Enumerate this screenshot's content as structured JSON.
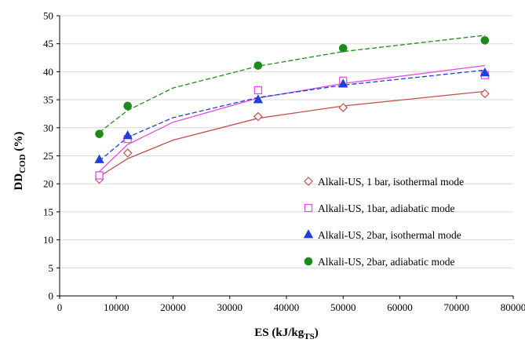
{
  "chart_data": {
    "type": "scatter",
    "xlabel": "ES (kJ/kg",
    "xlabel_sub": "TS",
    "xlabel_end": ")",
    "ylabel": "DD",
    "ylabel_sub": "COD",
    "ylabel_end": " (%)",
    "xlim": [
      0,
      80000
    ],
    "ylim": [
      0,
      50
    ],
    "xticks": [
      0,
      10000,
      20000,
      30000,
      40000,
      50000,
      60000,
      70000,
      80000
    ],
    "yticks": [
      0,
      5,
      10,
      15,
      20,
      25,
      30,
      35,
      40,
      45,
      50
    ],
    "grid": "horizontal",
    "legend_position": "lower-right",
    "series": [
      {
        "name": "Alkali-US, 1 bar, isothermal mode",
        "marker": "diamond-open",
        "color": "#c0504d",
        "line_style": "solid",
        "x": [
          7000,
          12000,
          35000,
          50000,
          75000
        ],
        "y": [
          20.8,
          25.5,
          32.0,
          33.6,
          36.1
        ],
        "fit": [
          [
            7000,
            21.3
          ],
          [
            12000,
            24.5
          ],
          [
            20000,
            27.8
          ],
          [
            35000,
            31.7
          ],
          [
            50000,
            33.9
          ],
          [
            75000,
            36.5
          ]
        ]
      },
      {
        "name": "Alkali-US, 1bar, adiabatic mode",
        "marker": "square-open",
        "color": "#e34de3",
        "line_style": "solid",
        "x": [
          7000,
          12000,
          35000,
          50000,
          75000
        ],
        "y": [
          21.5,
          28.0,
          36.7,
          38.4,
          39.4
        ],
        "fit": [
          [
            7000,
            22.2
          ],
          [
            12000,
            27.0
          ],
          [
            20000,
            31.0
          ],
          [
            35000,
            35.3
          ],
          [
            50000,
            37.9
          ],
          [
            75000,
            41.1
          ]
        ]
      },
      {
        "name": "Alkali-US, 2bar, isothermal mode",
        "marker": "triangle",
        "color": "#1f3fd6",
        "line_style": "dashed",
        "x": [
          7000,
          12000,
          35000,
          50000,
          75000
        ],
        "y": [
          24.3,
          28.6,
          35.0,
          37.8,
          39.8
        ],
        "fit": [
          [
            7000,
            24.1
          ],
          [
            12000,
            28.3
          ],
          [
            20000,
            31.8
          ],
          [
            35000,
            35.4
          ],
          [
            50000,
            37.6
          ],
          [
            75000,
            40.3
          ]
        ]
      },
      {
        "name": "Alkali-US, 2bar, adiabatic mode",
        "marker": "circle",
        "color": "#1e8a1e",
        "line_style": "dashed",
        "x": [
          7000,
          12000,
          35000,
          50000,
          75000
        ],
        "y": [
          28.9,
          33.9,
          41.1,
          44.2,
          45.6
        ],
        "fit": [
          [
            7000,
            29.2
          ],
          [
            12000,
            33.1
          ],
          [
            20000,
            37.1
          ],
          [
            35000,
            41.0
          ],
          [
            50000,
            43.6
          ],
          [
            75000,
            46.5
          ]
        ]
      }
    ]
  }
}
